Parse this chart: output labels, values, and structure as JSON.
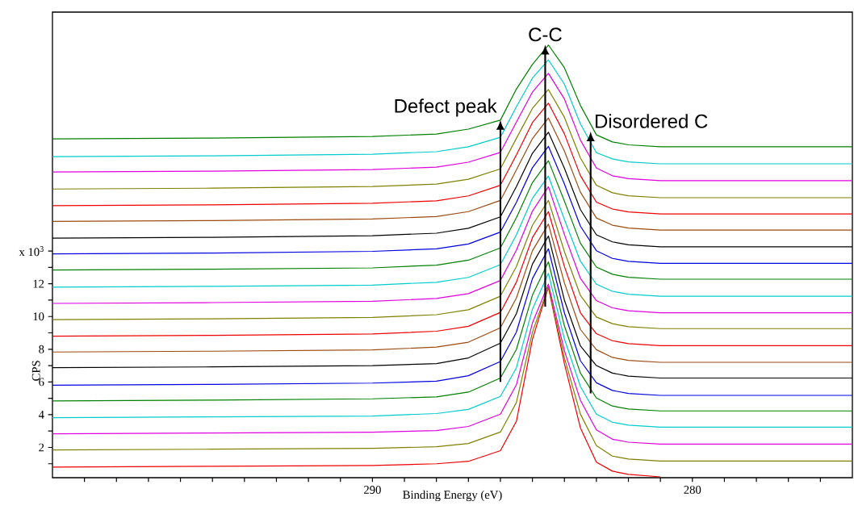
{
  "chart_data": {
    "type": "line",
    "xlabel": "Binding Energy (eV)",
    "ylabel": "CPS",
    "xlim": [
      300,
      275
    ],
    "ylim": [
      0.15,
      28.6
    ],
    "xticks": [
      {
        "value": 299,
        "label": null
      },
      {
        "value": 298,
        "label": null
      },
      {
        "value": 297,
        "label": null
      },
      {
        "value": 296,
        "label": null
      },
      {
        "value": 295,
        "label": null
      },
      {
        "value": 294,
        "label": null
      },
      {
        "value": 293,
        "label": null
      },
      {
        "value": 292,
        "label": null
      },
      {
        "value": 291,
        "label": null
      },
      290,
      {
        "value": 289,
        "label": null
      },
      {
        "value": 288,
        "label": null
      },
      {
        "value": 287,
        "label": null
      },
      {
        "value": 286,
        "label": null
      },
      {
        "value": 285,
        "label": null
      },
      {
        "value": 284,
        "label": null
      },
      {
        "value": 283,
        "label": null
      },
      {
        "value": 282,
        "label": null
      },
      {
        "value": 281,
        "label": null
      },
      280,
      {
        "value": 279,
        "label": null
      },
      {
        "value": 278,
        "label": null
      },
      {
        "value": 277,
        "label": null
      },
      {
        "value": 276,
        "label": null
      }
    ],
    "yticks": [
      {
        "value": 1,
        "label": null
      },
      2,
      {
        "value": 3,
        "label": null
      },
      4,
      {
        "value": 5,
        "label": null
      },
      6,
      {
        "value": 7,
        "label": null
      },
      8,
      {
        "value": 9,
        "label": null
      },
      10,
      {
        "value": 11,
        "label": null
      },
      12,
      {
        "value": 13,
        "label": null
      },
      {
        "value": 14,
        "label": "x 10$^{3}$"
      }
    ],
    "grid": false,
    "marker": "none",
    "line_style": "solid",
    "annotations": [
      {
        "text": "C-C",
        "x": 284.6,
        "y": 26.6
      },
      {
        "text": "Defect peak",
        "x": 286,
        "y": 22.0
      },
      {
        "text": "Disordered C",
        "x": 283.18,
        "y": 21.3
      }
    ],
    "x": [
      300,
      295,
      290,
      288,
      287,
      286,
      285.5,
      285,
      284.5,
      284,
      283.5,
      283,
      282.5,
      282,
      281,
      280,
      277,
      275
    ],
    "series": [
      {
        "color": "#ee0000",
        "x": [
          300,
          295,
          290,
          288,
          287,
          286,
          285.5,
          285,
          284.5,
          284,
          283.5,
          283,
          282.5,
          282,
          281
        ],
        "values": [
          0.8,
          0.85,
          0.9,
          1.0,
          1.15,
          1.8,
          3.6,
          8.6,
          11.79,
          7.12,
          3.2,
          1.1,
          0.55,
          0.35,
          0.2
        ]
      },
      {
        "color": "#808000",
        "values": [
          1.84,
          1.89,
          1.94,
          2.04,
          2.24,
          2.94,
          4.74,
          9.03,
          11.82,
          7.48,
          4.04,
          2.11,
          1.47,
          1.29,
          1.17,
          1.17,
          1.17,
          1.17
        ]
      },
      {
        "color": "#e000e0",
        "values": [
          2.83,
          2.88,
          2.93,
          3.03,
          3.28,
          4.03,
          5.83,
          9.6,
          11.98,
          7.91,
          4.88,
          3.07,
          2.5,
          2.32,
          2.2,
          2.2,
          2.2,
          2.2
        ]
      },
      {
        "color": "#00cccc",
        "values": [
          3.82,
          3.87,
          3.92,
          4.07,
          4.32,
          5.12,
          6.87,
          10.44,
          12.64,
          8.63,
          5.72,
          4.03,
          3.54,
          3.36,
          3.24,
          3.24,
          3.24,
          3.24
        ]
      },
      {
        "color": "#008000",
        "values": [
          4.84,
          4.89,
          4.97,
          5.09,
          5.38,
          6.24,
          7.99,
          11.3,
          13.34,
          9.43,
          6.54,
          5.02,
          4.53,
          4.35,
          4.23,
          4.23,
          4.23,
          4.23
        ]
      },
      {
        "color": "#0000e0",
        "values": [
          5.8,
          5.85,
          5.93,
          6.05,
          6.38,
          7.25,
          9.05,
          12.31,
          14.14,
          10.22,
          7.3,
          5.95,
          5.48,
          5.3,
          5.18,
          5.18,
          5.18,
          5.18
        ]
      },
      {
        "color": "#000000",
        "values": [
          6.87,
          6.92,
          7.0,
          7.12,
          7.47,
          8.37,
          10.17,
          13.2,
          14.92,
          11.0,
          8.2,
          7.0,
          6.54,
          6.36,
          6.24,
          6.24,
          6.24,
          6.24
        ]
      },
      {
        "color": "#9c4a10",
        "values": [
          7.83,
          7.88,
          7.96,
          8.13,
          8.43,
          9.31,
          11.13,
          14.01,
          15.65,
          12.05,
          9.21,
          7.97,
          7.5,
          7.32,
          7.2,
          7.2,
          7.2,
          7.2
        ]
      },
      {
        "color": "#ee0000",
        "values": [
          8.8,
          8.85,
          8.93,
          9.1,
          9.4,
          10.25,
          12.1,
          14.81,
          16.41,
          13.06,
          10.23,
          8.95,
          8.52,
          8.34,
          8.22,
          8.22,
          8.22,
          8.22
        ]
      },
      {
        "color": "#808000",
        "values": [
          9.81,
          9.86,
          9.94,
          10.11,
          10.41,
          11.24,
          13.06,
          15.57,
          17.1,
          13.97,
          11.29,
          9.97,
          9.56,
          9.38,
          9.26,
          9.26,
          9.26,
          9.26
        ]
      },
      {
        "color": "#e000e0",
        "values": [
          10.8,
          10.85,
          10.93,
          11.1,
          11.4,
          12.2,
          14.05,
          16.43,
          17.93,
          15.01,
          12.33,
          10.97,
          10.53,
          10.35,
          10.23,
          10.23,
          10.23,
          10.23
        ]
      },
      {
        "color": "#00cccc",
        "values": [
          11.79,
          11.84,
          11.92,
          12.09,
          12.39,
          13.17,
          14.99,
          17.22,
          18.58,
          15.93,
          13.38,
          11.97,
          11.54,
          11.36,
          11.24,
          11.24,
          11.24,
          11.24
        ]
      },
      {
        "color": "#008000",
        "values": [
          12.84,
          12.89,
          12.97,
          13.14,
          13.44,
          14.19,
          16.04,
          18.18,
          19.52,
          17.05,
          14.48,
          13.02,
          12.58,
          12.4,
          12.28,
          12.28,
          12.28,
          12.28
        ]
      },
      {
        "color": "#0000e0",
        "values": [
          13.83,
          13.88,
          13.98,
          14.13,
          14.43,
          15.16,
          16.98,
          19.09,
          20.4,
          18.1,
          15.52,
          14.02,
          13.55,
          13.37,
          13.25,
          13.25,
          13.25,
          13.25
        ]
      },
      {
        "color": "#000000",
        "values": [
          14.79,
          14.84,
          14.94,
          15.09,
          15.39,
          16.09,
          17.94,
          19.97,
          21.26,
          19.06,
          16.53,
          14.99,
          14.56,
          14.38,
          14.26,
          14.26,
          14.26,
          14.26
        ]
      },
      {
        "color": "#9c4a10",
        "values": [
          15.81,
          15.86,
          15.96,
          16.11,
          16.41,
          17.09,
          18.96,
          20.87,
          22.13,
          20.11,
          17.6,
          16.02,
          15.58,
          15.4,
          15.28,
          15.28,
          15.28,
          15.28
        ]
      },
      {
        "color": "#ee0000",
        "values": [
          16.77,
          16.82,
          16.92,
          17.07,
          17.37,
          18.02,
          19.87,
          21.85,
          23.04,
          21.16,
          18.61,
          16.99,
          16.57,
          16.39,
          16.27,
          16.27,
          16.27,
          16.27
        ]
      },
      {
        "color": "#808000",
        "values": [
          17.79,
          17.84,
          17.94,
          18.09,
          18.39,
          19.02,
          20.89,
          22.71,
          23.87,
          22.17,
          19.69,
          18.02,
          17.56,
          17.38,
          17.26,
          17.26,
          17.26,
          17.26
        ]
      },
      {
        "color": "#e000e0",
        "values": [
          18.83,
          18.88,
          18.98,
          19.13,
          19.43,
          20.03,
          21.88,
          23.71,
          24.86,
          23.29,
          20.78,
          19.07,
          18.6,
          18.42,
          18.3,
          18.3,
          18.3,
          18.3
        ]
      },
      {
        "color": "#00cccc",
        "values": [
          19.77,
          19.82,
          19.92,
          20.07,
          20.37,
          20.95,
          22.82,
          24.56,
          25.68,
          24.2,
          21.77,
          20.01,
          19.63,
          19.45,
          19.33,
          19.33,
          19.33,
          19.33
        ]
      },
      {
        "color": "#008000",
        "values": [
          20.85,
          20.9,
          21.0,
          21.15,
          21.45,
          22.0,
          23.9,
          25.4,
          26.59,
          25.2,
          22.9,
          21.1,
          20.67,
          20.49,
          20.37,
          20.37,
          20.37,
          20.37
        ]
      }
    ]
  }
}
